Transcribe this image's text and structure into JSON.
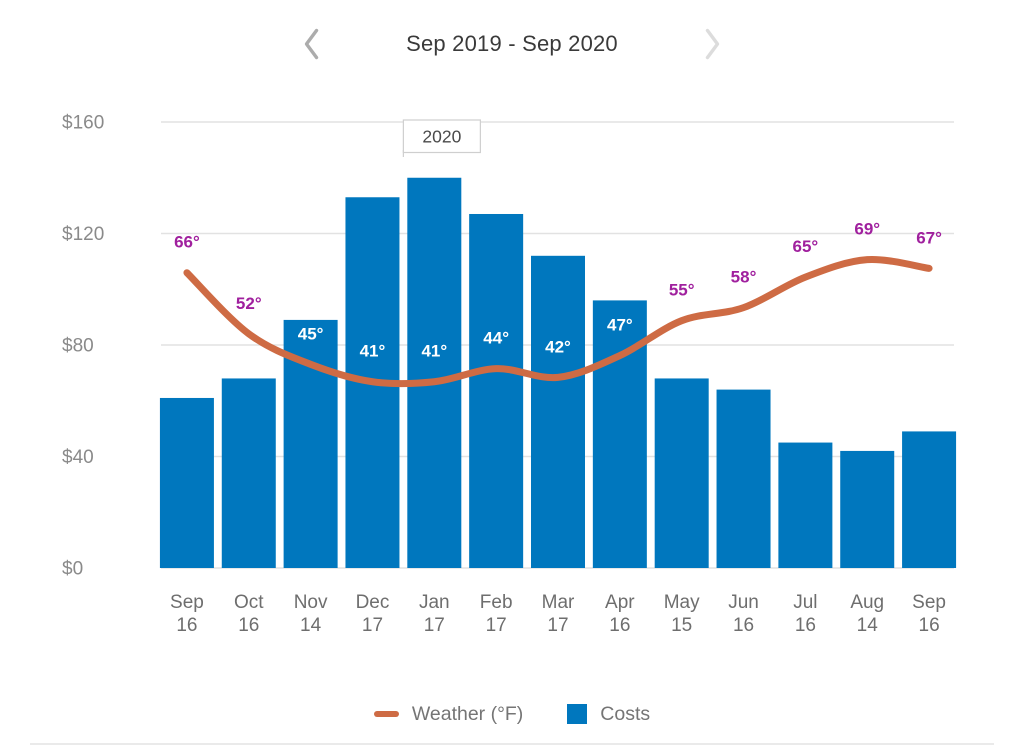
{
  "header": {
    "title": "Sep 2019 - Sep 2020",
    "prev_icon": "chevron-left",
    "next_icon": "chevron-right"
  },
  "chart_data": {
    "type": "bar+line",
    "title": "Sep 2019 - Sep 2020",
    "ylim": [
      0,
      160
    ],
    "grid": true,
    "y_ticks": [
      {
        "value": 0,
        "label": "$0"
      },
      {
        "value": 40,
        "label": "$40"
      },
      {
        "value": 80,
        "label": "$80"
      },
      {
        "value": 120,
        "label": "$120"
      },
      {
        "value": 160,
        "label": "$160"
      }
    ],
    "year_annotation": {
      "label": "2020",
      "boundary_index": 4
    },
    "series": [
      {
        "name": "Weather (°F)",
        "type": "line",
        "color_key": "line"
      },
      {
        "name": "Costs",
        "type": "bar",
        "color_key": "bar"
      }
    ],
    "months": [
      {
        "month": "Sep",
        "day": "16",
        "cost": 61,
        "temp": 66,
        "temp_label": "66°"
      },
      {
        "month": "Oct",
        "day": "16",
        "cost": 68,
        "temp": 52,
        "temp_label": "52°"
      },
      {
        "month": "Nov",
        "day": "14",
        "cost": 89,
        "temp": 45,
        "temp_label": "45°"
      },
      {
        "month": "Dec",
        "day": "17",
        "cost": 133,
        "temp": 41,
        "temp_label": "41°"
      },
      {
        "month": "Jan",
        "day": "17",
        "cost": 140,
        "temp": 41,
        "temp_label": "41°"
      },
      {
        "month": "Feb",
        "day": "17",
        "cost": 127,
        "temp": 44,
        "temp_label": "44°"
      },
      {
        "month": "Mar",
        "day": "17",
        "cost": 112,
        "temp": 42,
        "temp_label": "42°"
      },
      {
        "month": "Apr",
        "day": "16",
        "cost": 96,
        "temp": 47,
        "temp_label": "47°"
      },
      {
        "month": "May",
        "day": "15",
        "cost": 68,
        "temp": 55,
        "temp_label": "55°"
      },
      {
        "month": "Jun",
        "day": "16",
        "cost": 64,
        "temp": 58,
        "temp_label": "58°"
      },
      {
        "month": "Jul",
        "day": "16",
        "cost": 45,
        "temp": 65,
        "temp_label": "65°"
      },
      {
        "month": "Aug",
        "day": "14",
        "cost": 42,
        "temp": 69,
        "temp_label": "69°"
      },
      {
        "month": "Sep",
        "day": "16",
        "cost": 49,
        "temp": 67,
        "temp_label": "67°"
      }
    ],
    "legend_position": "bottom"
  },
  "legend": {
    "weather_label": "Weather (°F)",
    "costs_label": "Costs"
  },
  "colors": {
    "bar": "#0077BE",
    "line": "#CE6B44",
    "temp_label": "#A0209E",
    "temp_label_on_bar": "#FFFFFF",
    "grid": "#E2E2E2",
    "y_axis_text": "#8A8A8A",
    "x_axis_text": "#6E6E6E",
    "year_box_border": "#CFCFCF",
    "year_text": "#4A4A4A",
    "prev_chevron": "#ACACAC",
    "next_chevron": "#DCDCDC"
  }
}
